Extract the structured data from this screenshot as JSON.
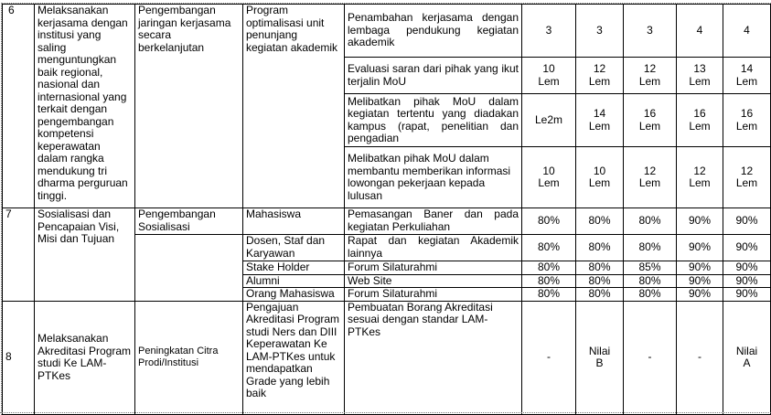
{
  "rows": [
    {
      "no": "6",
      "objective": "Melaksanakan kerjasama dengan institusi yang saling menguntungkan baik regional, nasional dan internasional yang terkait dengan pengembangan kompetensi keperawatan dalam rangka mendukung tri dharma perguruan tinggi.",
      "strategy": "Pengembangan jaringan kerjasama secara berkelanjutan",
      "program": "Program optimalisasi unit penunjang kegiatan akademik",
      "indicators": [
        {
          "text": "Penambahan kerjasama dengan lembaga pendukung kegiatan akademik",
          "values": [
            "3",
            "3",
            "3",
            "4",
            "4"
          ]
        },
        {
          "text": "Evaluasi saran dari pihak yang ikut terjalin MoU",
          "values": [
            "10 Lem",
            "12 Lem",
            "12 Lem",
            "13 Lem",
            "14 Lem"
          ]
        },
        {
          "text": "Melibatkan pihak MoU dalam kegiatan tertentu  yang diadakan kampus (rapat, penelitian dan pengadian",
          "values": [
            "Le2m",
            "14 Lem",
            "16 Lem",
            "16 Lem",
            "16 Lem"
          ]
        },
        {
          "text": " Melibatkan pihak MoU dalam membantu memberikan informasi lowongan pekerjaan kepada lulusan",
          "values": [
            "10 Lem",
            "10 Lem",
            "12 Lem",
            "12 Lem",
            "12 Lem"
          ]
        }
      ]
    },
    {
      "no": "7",
      "objective": "Sosialisasi dan Pencapaian Visi, Misi dan Tujuan",
      "strategy": "Pengembangan Sosialisasi",
      "indicators": [
        {
          "target": "Mahasiswa",
          "text": "Pemasangan Baner dan pada kegiatan Perkuliahan",
          "values": [
            "80%",
            "80%",
            "80%",
            "90%",
            "90%"
          ]
        },
        {
          "target": "Dosen, Staf dan Karyawan",
          "text": "Rapat dan kegiatan Akademik lainnya",
          "values": [
            "80%",
            "80%",
            "80%",
            "90%",
            "90%"
          ]
        },
        {
          "target": "Stake Holder",
          "text": "Forum Silaturahmi",
          "values": [
            "80%",
            "80%",
            "85%",
            "90%",
            "90%"
          ]
        },
        {
          "target": "Alumni",
          "text": "Web Site",
          "values": [
            "80%",
            "80%",
            "80%",
            "90%",
            "90%"
          ]
        },
        {
          "target": "Orang Mahasiswa",
          "text": "Forum Silaturahmi",
          "values": [
            "80%",
            "80%",
            "80%",
            "90%",
            "90%"
          ]
        }
      ]
    },
    {
      "no": "8",
      "objective": "Melaksanakan Akreditasi Program studi Ke LAM-PTKes",
      "strategy": "Peningkatan Citra Prodi/Institusi",
      "program": "Pengajuan Akreditasi Program studi Ners dan DIII Keperawatan Ke LAM-PTKes untuk mendapatkan Grade yang lebih baik",
      "indicators": [
        {
          "text": "Pembuatan Borang Akreditasi sesuai dengan standar LAM-PTKes",
          "values": [
            "-",
            "Nilai B",
            "-",
            "-",
            "Nilai A"
          ]
        }
      ]
    }
  ]
}
